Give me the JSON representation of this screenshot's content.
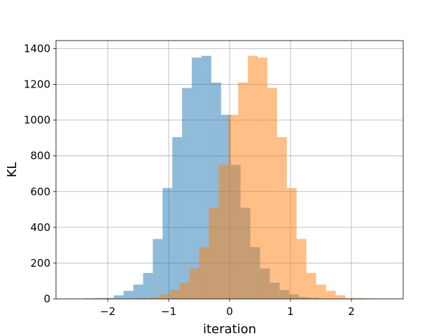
{
  "chart_data": {
    "type": "bar",
    "xlabel": "iteration",
    "ylabel": "KL",
    "xlim": [
      -2.85,
      2.85
    ],
    "ylim": [
      0,
      1445
    ],
    "xticks": [
      -2,
      -1,
      0,
      1,
      2
    ],
    "xtick_labels": [
      "−2",
      "−1",
      "0",
      "1",
      "2"
    ],
    "yticks": [
      0,
      200,
      400,
      600,
      800,
      1000,
      1200,
      1400
    ],
    "ytick_labels": [
      "0",
      "200",
      "400",
      "600",
      "800",
      "1000",
      "1200",
      "1400"
    ],
    "grid": true,
    "series": [
      {
        "color": "#1f77b4",
        "opacity": 0.5,
        "bin_edges": [
          -2.38,
          -2.22,
          -2.06,
          -1.9,
          -1.74,
          -1.58,
          -1.42,
          -1.26,
          -1.1,
          -0.94,
          -0.78,
          -0.62,
          -0.46,
          -0.3,
          -0.14,
          0.02,
          0.18,
          0.34,
          0.5,
          0.66,
          0.82,
          0.98,
          1.14,
          1.3,
          1.46,
          1.62
        ],
        "counts": [
          3,
          5,
          5,
          20,
          45,
          80,
          145,
          335,
          620,
          905,
          1180,
          1350,
          1360,
          1210,
          1030,
          750,
          510,
          290,
          170,
          90,
          50,
          25,
          10,
          5,
          2
        ]
      },
      {
        "color": "#ff7f0e",
        "opacity": 0.5,
        "bin_edges": [
          -1.62,
          -1.46,
          -1.3,
          -1.14,
          -0.98,
          -0.82,
          -0.66,
          -0.5,
          -0.34,
          -0.18,
          -0.02,
          0.14,
          0.3,
          0.46,
          0.62,
          0.78,
          0.94,
          1.1,
          1.26,
          1.42,
          1.58,
          1.74,
          1.9,
          2.06,
          2.22,
          2.38
        ],
        "counts": [
          2,
          5,
          10,
          25,
          50,
          90,
          170,
          290,
          510,
          750,
          1030,
          1210,
          1360,
          1350,
          1180,
          905,
          620,
          335,
          145,
          80,
          45,
          20,
          5,
          5,
          3
        ]
      }
    ]
  }
}
